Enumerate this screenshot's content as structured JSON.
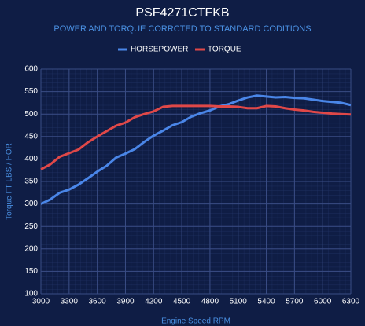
{
  "chart_data": {
    "type": "line",
    "title": "PSF4271CTFKB",
    "subtitle": "POWER AND TORQUE CORRCTED TO STANDARD CODITIONS",
    "x_label": "Engine Speed RPM",
    "y_label": "Torque FT-LBS / HOR",
    "x": [
      3000,
      3100,
      3200,
      3300,
      3400,
      3500,
      3600,
      3700,
      3800,
      3900,
      4000,
      4100,
      4200,
      4300,
      4400,
      4500,
      4600,
      4700,
      4800,
      4900,
      5000,
      5100,
      5200,
      5300,
      5400,
      5500,
      5600,
      5700,
      5800,
      5900,
      6000,
      6100,
      6200,
      6300
    ],
    "series": [
      {
        "name": "HORSEPOWER",
        "color": "#4a86e8",
        "values": [
          300,
          310,
          325,
          332,
          343,
          357,
          372,
          385,
          403,
          412,
          422,
          438,
          452,
          463,
          475,
          482,
          494,
          502,
          508,
          517,
          522,
          530,
          537,
          541,
          539,
          537,
          538,
          536,
          535,
          532,
          529,
          527,
          525,
          520
        ]
      },
      {
        "name": "TORQUE",
        "color": "#e04848",
        "values": [
          377,
          388,
          405,
          413,
          421,
          437,
          450,
          462,
          474,
          481,
          493,
          500,
          506,
          516,
          518,
          518,
          518,
          518,
          518,
          517,
          517,
          516,
          513,
          513,
          518,
          517,
          513,
          510,
          508,
          505,
          503,
          501,
          500,
          499
        ]
      }
    ],
    "xlim": [
      3000,
      6300
    ],
    "xticks": [
      3000,
      3300,
      3600,
      3900,
      4200,
      4500,
      4800,
      5100,
      5400,
      5700,
      6000,
      6300
    ],
    "ylim": [
      100,
      600
    ],
    "yticks": [
      100,
      150,
      200,
      250,
      300,
      350,
      400,
      450,
      500,
      550,
      600
    ],
    "grid": true,
    "legend": "top"
  }
}
